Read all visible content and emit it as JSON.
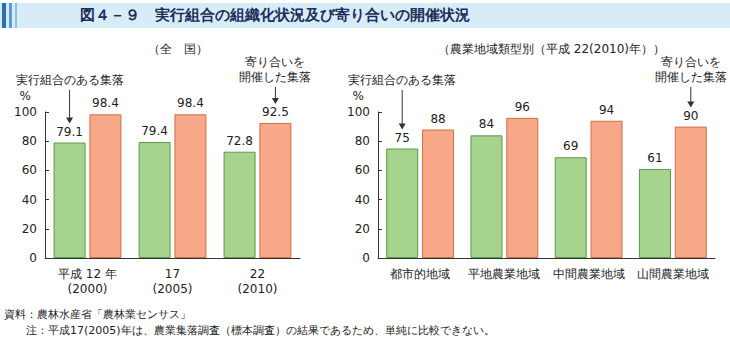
{
  "title": "図４－９　実行組合の組織化状況及び寄り合いの開催状況",
  "source": "資料：農林水産省「農林業センサス」",
  "note": "注：平成17(2005)年は、農業集落調査（標本調査）の結果であるため、単純に比較できない。",
  "chart_data": [
    {
      "type": "bar",
      "title": "（全　国）",
      "ylabel": "%",
      "categories": [
        "平成 12 年\n(2000)",
        "17\n(2005)",
        "22\n(2010)"
      ],
      "series": [
        {
          "name": "実行組合のある集落",
          "color": "#a6d48e",
          "values": [
            79.1,
            79.4,
            72.8
          ]
        },
        {
          "name": "寄り合いを\n開催した集落",
          "color": "#f6a889",
          "values": [
            98.4,
            98.4,
            92.5
          ]
        }
      ],
      "annotations": [
        {
          "text": "実行組合のある集落",
          "category": "平成 12 年\n(2000)"
        },
        {
          "text": "寄り合いを\n開催した集落",
          "category": "22\n(2010)"
        }
      ],
      "ylim": [
        0,
        100
      ],
      "yticks": [
        0,
        20,
        40,
        60,
        80,
        100
      ],
      "grid": false,
      "data_labels": true
    },
    {
      "type": "bar",
      "title": "（農業地域類型別（平成 22(2010)年））",
      "ylabel": "%",
      "categories": [
        "都市的地域",
        "平地農業地域",
        "中間農業地域",
        "山間農業地域"
      ],
      "series": [
        {
          "name": "実行組合のある集落",
          "color": "#a6d48e",
          "values": [
            75,
            84,
            69,
            61
          ]
        },
        {
          "name": "寄り合いを\n開催した集落",
          "color": "#f6a889",
          "values": [
            88,
            96,
            94,
            90
          ]
        }
      ],
      "annotations": [
        {
          "text": "実行組合のある集落",
          "category": "都市的地域"
        },
        {
          "text": "寄り合いを\n開催した集落",
          "category": "山間農業地域"
        }
      ],
      "ylim": [
        0,
        100
      ],
      "yticks": [
        0,
        20,
        40,
        60,
        80,
        100
      ],
      "grid": false,
      "data_labels": true
    }
  ]
}
